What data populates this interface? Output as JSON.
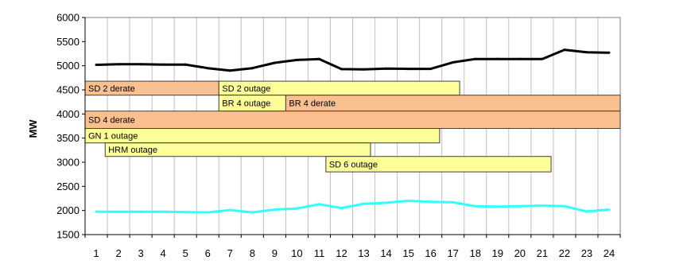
{
  "chart_data": {
    "type": "line",
    "title": "",
    "xlabel": "",
    "ylabel": "MW",
    "ylim": [
      1500,
      6000
    ],
    "y_ticks": [
      1500,
      2000,
      2500,
      3000,
      3500,
      4000,
      4500,
      5000,
      5500,
      6000
    ],
    "categories": [
      "1",
      "2",
      "3",
      "4",
      "5",
      "6",
      "7",
      "8",
      "9",
      "10",
      "11",
      "12",
      "13",
      "14",
      "15",
      "16",
      "17",
      "18",
      "19",
      "20",
      "21",
      "22",
      "23",
      "24"
    ],
    "grid": "vertical",
    "legend": "none",
    "series": [
      {
        "color": "#000000",
        "values": [
          5020,
          5030,
          5030,
          5025,
          5025,
          4950,
          4900,
          4950,
          5060,
          5120,
          5140,
          4930,
          4925,
          4940,
          4935,
          4935,
          5070,
          5140,
          5140,
          5140,
          5140,
          5330,
          5280,
          5270
        ]
      },
      {
        "color": "#33ffff",
        "values": [
          1975,
          1975,
          1975,
          1975,
          1965,
          1960,
          2010,
          1960,
          2020,
          2040,
          2130,
          2050,
          2140,
          2160,
          2200,
          2180,
          2170,
          2090,
          2080,
          2090,
          2100,
          2090,
          1980,
          2020
        ]
      }
    ],
    "outage_bars": [
      {
        "label": "SD 2 derate",
        "start": 0.5,
        "end": 6.5,
        "y_top": 4680,
        "y_bottom": 4390,
        "color": "#fac090"
      },
      {
        "label": "SD 2 outage",
        "start": 6.5,
        "end": 17.3,
        "y_top": 4680,
        "y_bottom": 4390,
        "color": "#ffff99"
      },
      {
        "label": "BR 4  outage",
        "start": 6.5,
        "end": 9.5,
        "y_top": 4390,
        "y_bottom": 4060,
        "color": "#ffff99"
      },
      {
        "label": "BR 4 derate",
        "start": 9.5,
        "end": 24.5,
        "y_top": 4390,
        "y_bottom": 4060,
        "color": "#fac090"
      },
      {
        "label": "SD 4  derate",
        "start": 0.5,
        "end": 24.5,
        "y_top": 4060,
        "y_bottom": 3700,
        "color": "#fac090"
      },
      {
        "label": "GN 1 outage",
        "start": 0.5,
        "end": 16.4,
        "y_top": 3700,
        "y_bottom": 3400,
        "color": "#ffff99"
      },
      {
        "label": "HRM  outage",
        "start": 1.4,
        "end": 13.3,
        "y_top": 3400,
        "y_bottom": 3120,
        "color": "#ffff99"
      },
      {
        "label": "SD 6 outage",
        "start": 11.3,
        "end": 21.4,
        "y_top": 3120,
        "y_bottom": 2800,
        "color": "#ffff99"
      }
    ]
  }
}
